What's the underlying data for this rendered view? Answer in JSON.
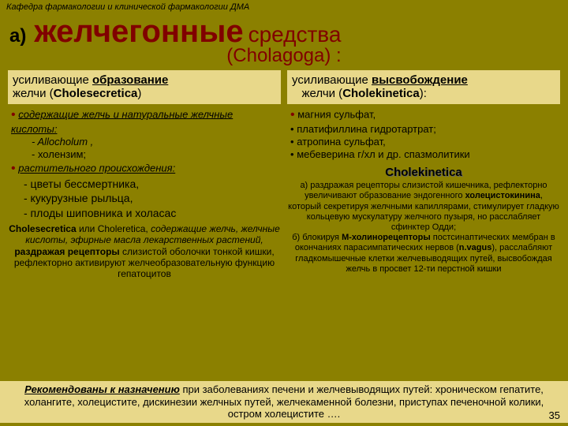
{
  "header": "Кафедра фармакологии и клинической фармакологии ДМА",
  "title": {
    "a": "а)",
    "main": "желчегонные",
    "sub": "средства",
    "latin": "(Cholagoga) :"
  },
  "left": {
    "head_pre": "усиливающие ",
    "head_emph": "образование",
    "head_post": "желчи (",
    "head_latin": "Cholesecretica",
    "head_close": ")",
    "grp1_label": "содержащие желчь и натуральные желчные кислоты:",
    "grp1_items": [
      "- Allocholum ,",
      "-  холензим;"
    ],
    "grp2_label": "растительного происхождения:",
    "grp2_items": [
      "- цветы бессмертника,",
      "-  кукурузные рыльца,",
      "- плоды шиповника и   холасас"
    ],
    "desc_bold1": "Cholesecretica",
    "desc_mid": " или ",
    "desc_bold2": "Choleretica",
    "desc_rest": ", содержащие желчь, желчные кислоты, эфирные масла лекарственных растений, раздражая рецепторы слизистой оболочки тонкой кишки, рефлекторно активируют желчеобразовательную функцию гепатоцитов",
    "desc_em": "раздражая рецепторы"
  },
  "right": {
    "head_pre": "усиливающие ",
    "head_emph": "высвобождение",
    "head_post": "желчи (",
    "head_latin": "Cholekinetica",
    "head_close": "):",
    "items": [
      {
        "a": "магния",
        "b": "  сульфат,"
      },
      {
        "a": "платифиллина",
        "b": "  гидротартрат;"
      },
      {
        "a": "атропина",
        "b": "  сульфат,"
      },
      {
        "a": "мебеверина",
        "b": " г/хл и др. ",
        "c": "спазмолитики"
      }
    ],
    "sec_title": "Cholekinetica",
    "desc": "а) раздражая рецепторы слизистой кишечника, рефлекторно увеличивают образование эндогенного холецистокинина, который секретируя желчными капиллярами, стимулирует гладкую кольцевую мускулатуру желчного пузыря, но расслабляет сфинктер Одди;\nб) блокируя М-холинорецепторы постсинаптических мембран в окончаниях парасимпатических нервов (n.vagus),  расслабляют гладкомышечные клетки желчевыводящих путей, высвобождая желчь в просвет 12-ти перстной кишки",
    "bold_terms": [
      "холецистокинина",
      "М-холинорецепторы",
      "n.vagus"
    ]
  },
  "footer": {
    "lead": "Рекомендованы к назначению",
    "rest": " при  заболеваниях печени и желчевыводящих путей: хроническом гепатите, холангите, холецистите, дискинезии желчных путей, желчекаменной болезни, приступах печеночной колики, остром холецистите …."
  },
  "page": "35"
}
